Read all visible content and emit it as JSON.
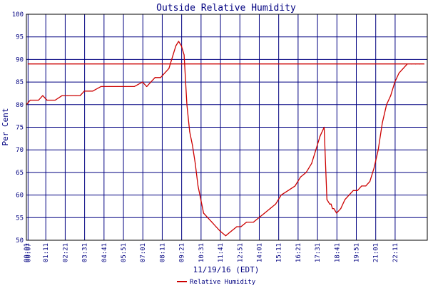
{
  "chart_data": {
    "type": "line",
    "title": "Outside Relative Humidity",
    "xlabel": "11/19/16 (EDT)",
    "ylabel": "Per Cent",
    "ylim": [
      50,
      100
    ],
    "yticks": [
      50,
      55,
      60,
      65,
      70,
      75,
      80,
      85,
      90,
      95,
      100
    ],
    "xlim": [
      "00:01",
      "00:07"
    ],
    "xticks": [
      "00:01",
      "01:11",
      "02:21",
      "03:31",
      "04:41",
      "05:51",
      "07:01",
      "08:11",
      "09:21",
      "10:31",
      "11:41",
      "12:51",
      "14:01",
      "15:11",
      "16:21",
      "17:31",
      "18:41",
      "19:51",
      "21:01",
      "22:11",
      "00:07"
    ],
    "grid": true,
    "legend_position": "bottom-left",
    "colors": {
      "series": "#cc0000",
      "grid": "#000080",
      "frame": "#000000"
    },
    "series": [
      {
        "name": "Relative Humidity",
        "x": [
          "00:01",
          "00:15",
          "00:45",
          "01:00",
          "01:15",
          "01:45",
          "02:10",
          "02:30",
          "03:00",
          "03:15",
          "03:30",
          "03:50",
          "04:00",
          "04:30",
          "05:00",
          "05:30",
          "06:00",
          "06:15",
          "06:30",
          "07:00",
          "07:15",
          "07:30",
          "07:45",
          "08:05",
          "08:20",
          "08:35",
          "08:50",
          "09:00",
          "09:10",
          "09:20",
          "09:30",
          "09:40",
          "09:50",
          "10:00",
          "10:10",
          "10:20",
          "10:30",
          "10:40",
          "10:55",
          "11:10",
          "11:25",
          "11:40",
          "12:00",
          "12:20",
          "12:40",
          "12:55",
          "13:15",
          "13:40",
          "14:00",
          "14:20",
          "14:40",
          "15:00",
          "15:20",
          "15:45",
          "16:10",
          "16:30",
          "16:50",
          "17:10",
          "17:25",
          "17:40",
          "17:55",
          "18:05",
          "18:15",
          "18:20",
          "18:25",
          "18:30",
          "18:40",
          "18:55",
          "19:10",
          "19:25",
          "19:40",
          "19:55",
          "20:10",
          "20:25",
          "20:40",
          "20:55",
          "21:10",
          "21:25",
          "21:40",
          "21:55",
          "22:10",
          "22:25",
          "22:40",
          "22:55",
          "23:10",
          "23:25",
          "23:40",
          "23:55",
          "00:07"
        ],
        "values": [
          80,
          81,
          81,
          82,
          81,
          81,
          82,
          82,
          82,
          82,
          83,
          83,
          83,
          84,
          84,
          84,
          84,
          84,
          84,
          85,
          84,
          85,
          86,
          86,
          87,
          88,
          91,
          93,
          94,
          93,
          91,
          80,
          74,
          71,
          67,
          62,
          59,
          56,
          55,
          54,
          53,
          52,
          51,
          52,
          53,
          53,
          54,
          54,
          55,
          56,
          57,
          58,
          60,
          61,
          62,
          64,
          65,
          67,
          70,
          73,
          75,
          59,
          58,
          58,
          57,
          57,
          56,
          57,
          59,
          60,
          61,
          61,
          62,
          62,
          63,
          66,
          70,
          76,
          80,
          82,
          85,
          87,
          88,
          89,
          89,
          89,
          89,
          89,
          89
        ]
      }
    ]
  }
}
